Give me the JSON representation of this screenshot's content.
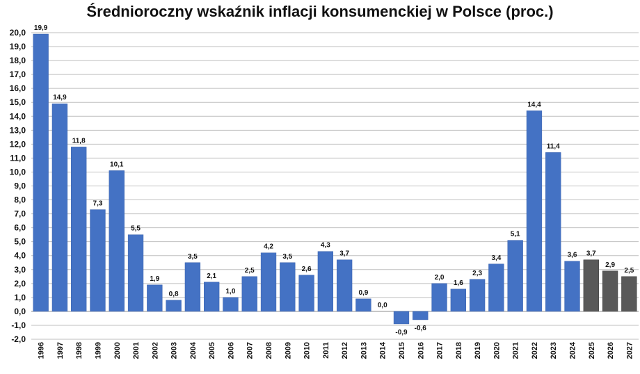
{
  "chart_data": {
    "type": "bar",
    "title": "Średnioroczny wskaźnik inflacji konsumenckiej w Polsce (proc.)",
    "xlabel": "",
    "ylabel": "",
    "ylim": [
      -2,
      20
    ],
    "yticks": [
      "20,0",
      "19,0",
      "18,0",
      "17,0",
      "16,0",
      "15,0",
      "14,0",
      "13,0",
      "12,0",
      "11,0",
      "10,0",
      "9,0",
      "8,0",
      "7,0",
      "6,0",
      "5,0",
      "4,0",
      "3,0",
      "2,0",
      "1,0",
      "0,0",
      "-1,0",
      "-2,0"
    ],
    "grid": true,
    "categories": [
      "1996",
      "1997",
      "1998",
      "1999",
      "2000",
      "2001",
      "2002",
      "2003",
      "2004",
      "2005",
      "2006",
      "2007",
      "2008",
      "2009",
      "2010",
      "2011",
      "2012",
      "2013",
      "2014",
      "2015",
      "2016",
      "2017",
      "2018",
      "2019",
      "2020",
      "2021",
      "2022",
      "2023",
      "2024",
      "2025",
      "2026",
      "2027"
    ],
    "values": [
      19.9,
      14.9,
      11.8,
      7.3,
      10.1,
      5.5,
      1.9,
      0.8,
      3.5,
      2.1,
      1.0,
      2.5,
      4.2,
      3.5,
      2.6,
      4.3,
      3.7,
      0.9,
      0.0,
      -0.9,
      -0.6,
      2.0,
      1.6,
      2.3,
      3.4,
      5.1,
      14.4,
      11.4,
      3.6,
      3.7,
      2.9,
      2.5
    ],
    "labels": [
      "19,9",
      "14,9",
      "11,8",
      "7,3",
      "10,1",
      "5,5",
      "1,9",
      "0,8",
      "3,5",
      "2,1",
      "1,0",
      "2,5",
      "4,2",
      "3,5",
      "2,6",
      "4,3",
      "3,7",
      "0,9",
      "0,0",
      "-0,9",
      "-0,6",
      "2,0",
      "1,6",
      "2,3",
      "3,4",
      "5,1",
      "14,4",
      "11,4",
      "3,6",
      "3,7",
      "2,9",
      "2,5"
    ],
    "colors": {
      "actual": "#4472C4",
      "forecast": "#595959",
      "grid": "#BFBFBF",
      "axis": "#888888"
    },
    "forecast_categories": [
      "2025",
      "2026",
      "2027"
    ]
  }
}
